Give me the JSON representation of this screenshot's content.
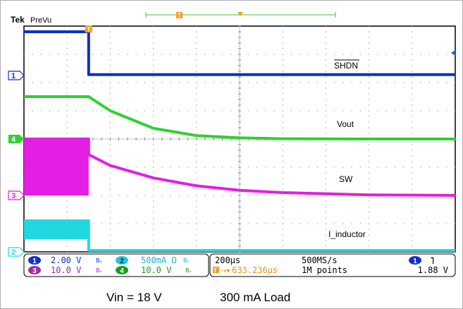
{
  "header": {
    "brand": "Tek",
    "mode": "PreVu",
    "trigger_marker": "T"
  },
  "chart_data": {
    "type": "line",
    "title": "",
    "xlabel": "",
    "ylabel": "",
    "time_per_div": "200µs",
    "grid": true,
    "divisions": {
      "x": 10,
      "y": 8
    },
    "x_range_divs": [
      0,
      10
    ],
    "y_range_divs": [
      0,
      8
    ],
    "trigger_at_div": 1.5,
    "series": [
      {
        "name": "SHDN",
        "channel": "1",
        "color": "#0f2fc8",
        "x": [
          0,
          1.5,
          1.5,
          10
        ],
        "y": [
          7.8,
          7.8,
          6.28,
          6.28
        ]
      },
      {
        "name": "Vout",
        "channel": "4",
        "color": "#2ed12e",
        "x": [
          0,
          1.5,
          2,
          3,
          4,
          5,
          6,
          8,
          10
        ],
        "y": [
          5.5,
          5.5,
          5.0,
          4.38,
          4.12,
          4.04,
          4.01,
          4.0,
          4.0
        ]
      },
      {
        "name": "SW",
        "channel": "3",
        "color": "#e21fe2",
        "x": [
          0,
          1.5,
          1.5,
          2,
          3,
          4,
          5,
          6,
          8,
          10
        ],
        "y": [
          4.0,
          4.0,
          3.45,
          3.06,
          2.62,
          2.34,
          2.18,
          2.1,
          2.02,
          2.0
        ],
        "band_low": 2.0
      },
      {
        "name": "I_inductor",
        "channel": "2",
        "color": "#22d8e0",
        "x": [
          0,
          1.5,
          1.5,
          10
        ],
        "y": [
          1.1,
          1.1,
          0.05,
          0.05
        ],
        "band_low": 0.45
      }
    ],
    "labels": [
      {
        "text": "SHDN",
        "series": "SHDN",
        "overline": true
      },
      {
        "text": "Vout",
        "series": "Vout"
      },
      {
        "text": "SW",
        "series": "SW"
      },
      {
        "text": "I_inductor",
        "series": "I_inductor"
      }
    ],
    "channel_markers": [
      {
        "num": "1",
        "color": "#0f2fc8",
        "at_div": 6.25,
        "style": "outline"
      },
      {
        "num": "4",
        "color": "#2ed12e",
        "at_div": 4.0,
        "style": "filled"
      },
      {
        "num": "3",
        "color": "#e21fe2",
        "at_div": 2.0,
        "style": "outline"
      },
      {
        "num": "2",
        "color": "#22d8e0",
        "at_div": 0.0,
        "style": "outline"
      }
    ]
  },
  "readout": {
    "ch1": {
      "num": "1",
      "value": "2.00 V",
      "suffix": "Bᵥ",
      "color": "#0f2fc8"
    },
    "ch2": {
      "num": "2",
      "value": "500mA Ω",
      "suffix": "Bᵥ",
      "color": "#22d8e0"
    },
    "ch3": {
      "num": "3",
      "value": "10.0 V",
      "suffix": "Bᵥ",
      "color": "#e21fe2"
    },
    "ch4": {
      "num": "4",
      "value": "10.0 V",
      "suffix": "Bᵥ",
      "color": "#2ed12e"
    },
    "timebase": "200µs",
    "sample_rate": "500MS/s",
    "trigger_position": "633.236µs",
    "record_length": "1M points",
    "trigger_channel": "1",
    "trigger_slope": "˥",
    "trigger_level": "1.88 V"
  },
  "captions": {
    "vin": "Vin = 18 V",
    "load": "300 mA Load"
  }
}
